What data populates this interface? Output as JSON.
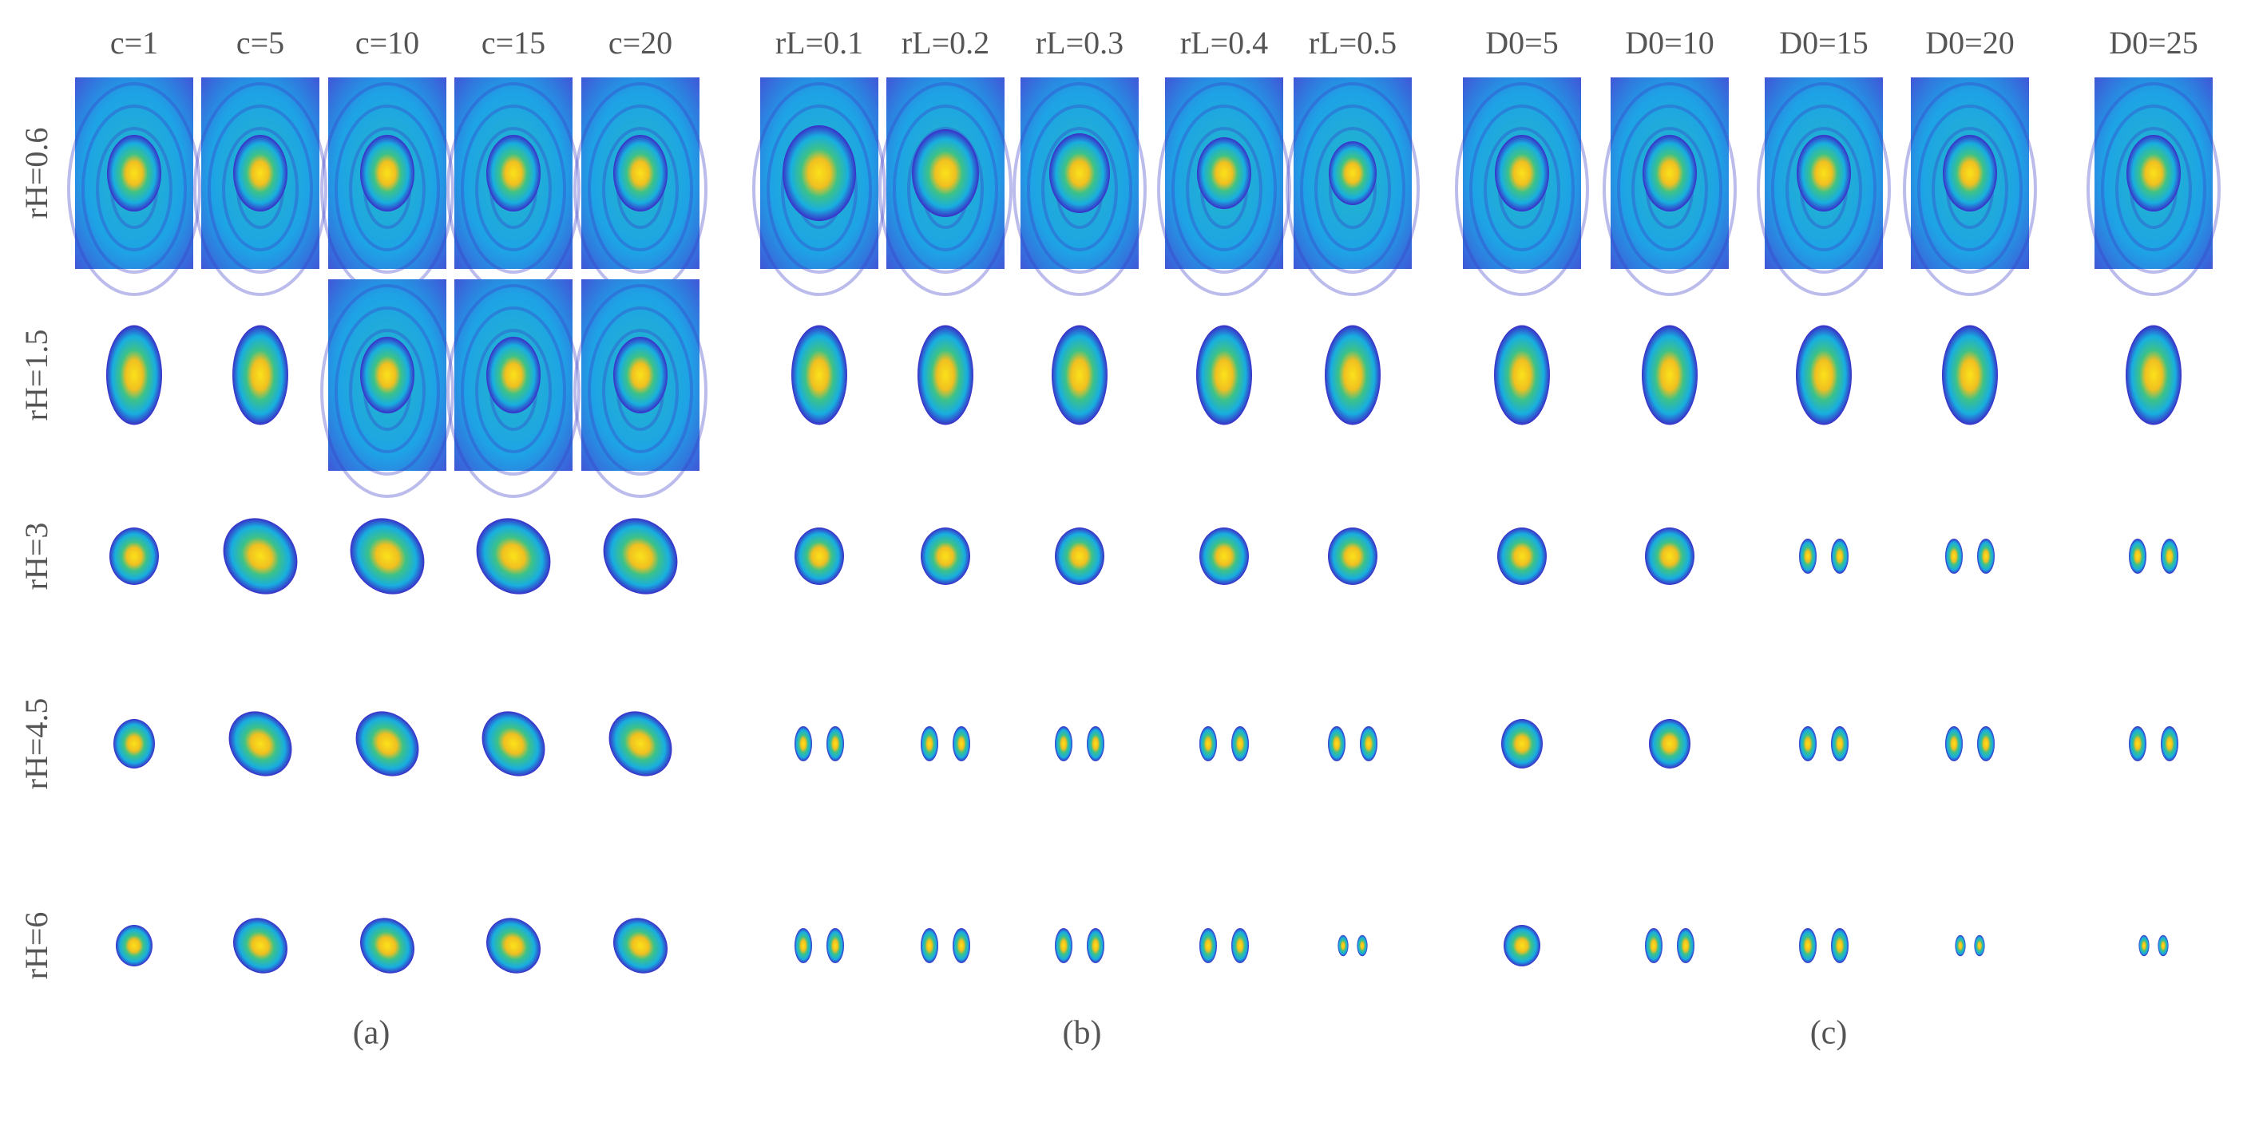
{
  "row_labels": [
    "rH=0.6",
    "rH=1.5",
    "rH=3",
    "rH=4.5",
    "rH=6"
  ],
  "panels": [
    {
      "columns": [
        "c=1",
        "c=5",
        "c=10",
        "c=15",
        "c=20"
      ],
      "caption": "(a)"
    },
    {
      "columns": [
        "rL=0.1",
        "rL=0.2",
        "rL=0.3",
        "rL=0.4",
        "rL=0.5"
      ],
      "caption": "(b)"
    },
    {
      "columns": [
        "D0=5",
        "D0=10",
        "D0=15",
        "D0=20",
        "D0=25"
      ],
      "caption": "(c)"
    }
  ]
}
